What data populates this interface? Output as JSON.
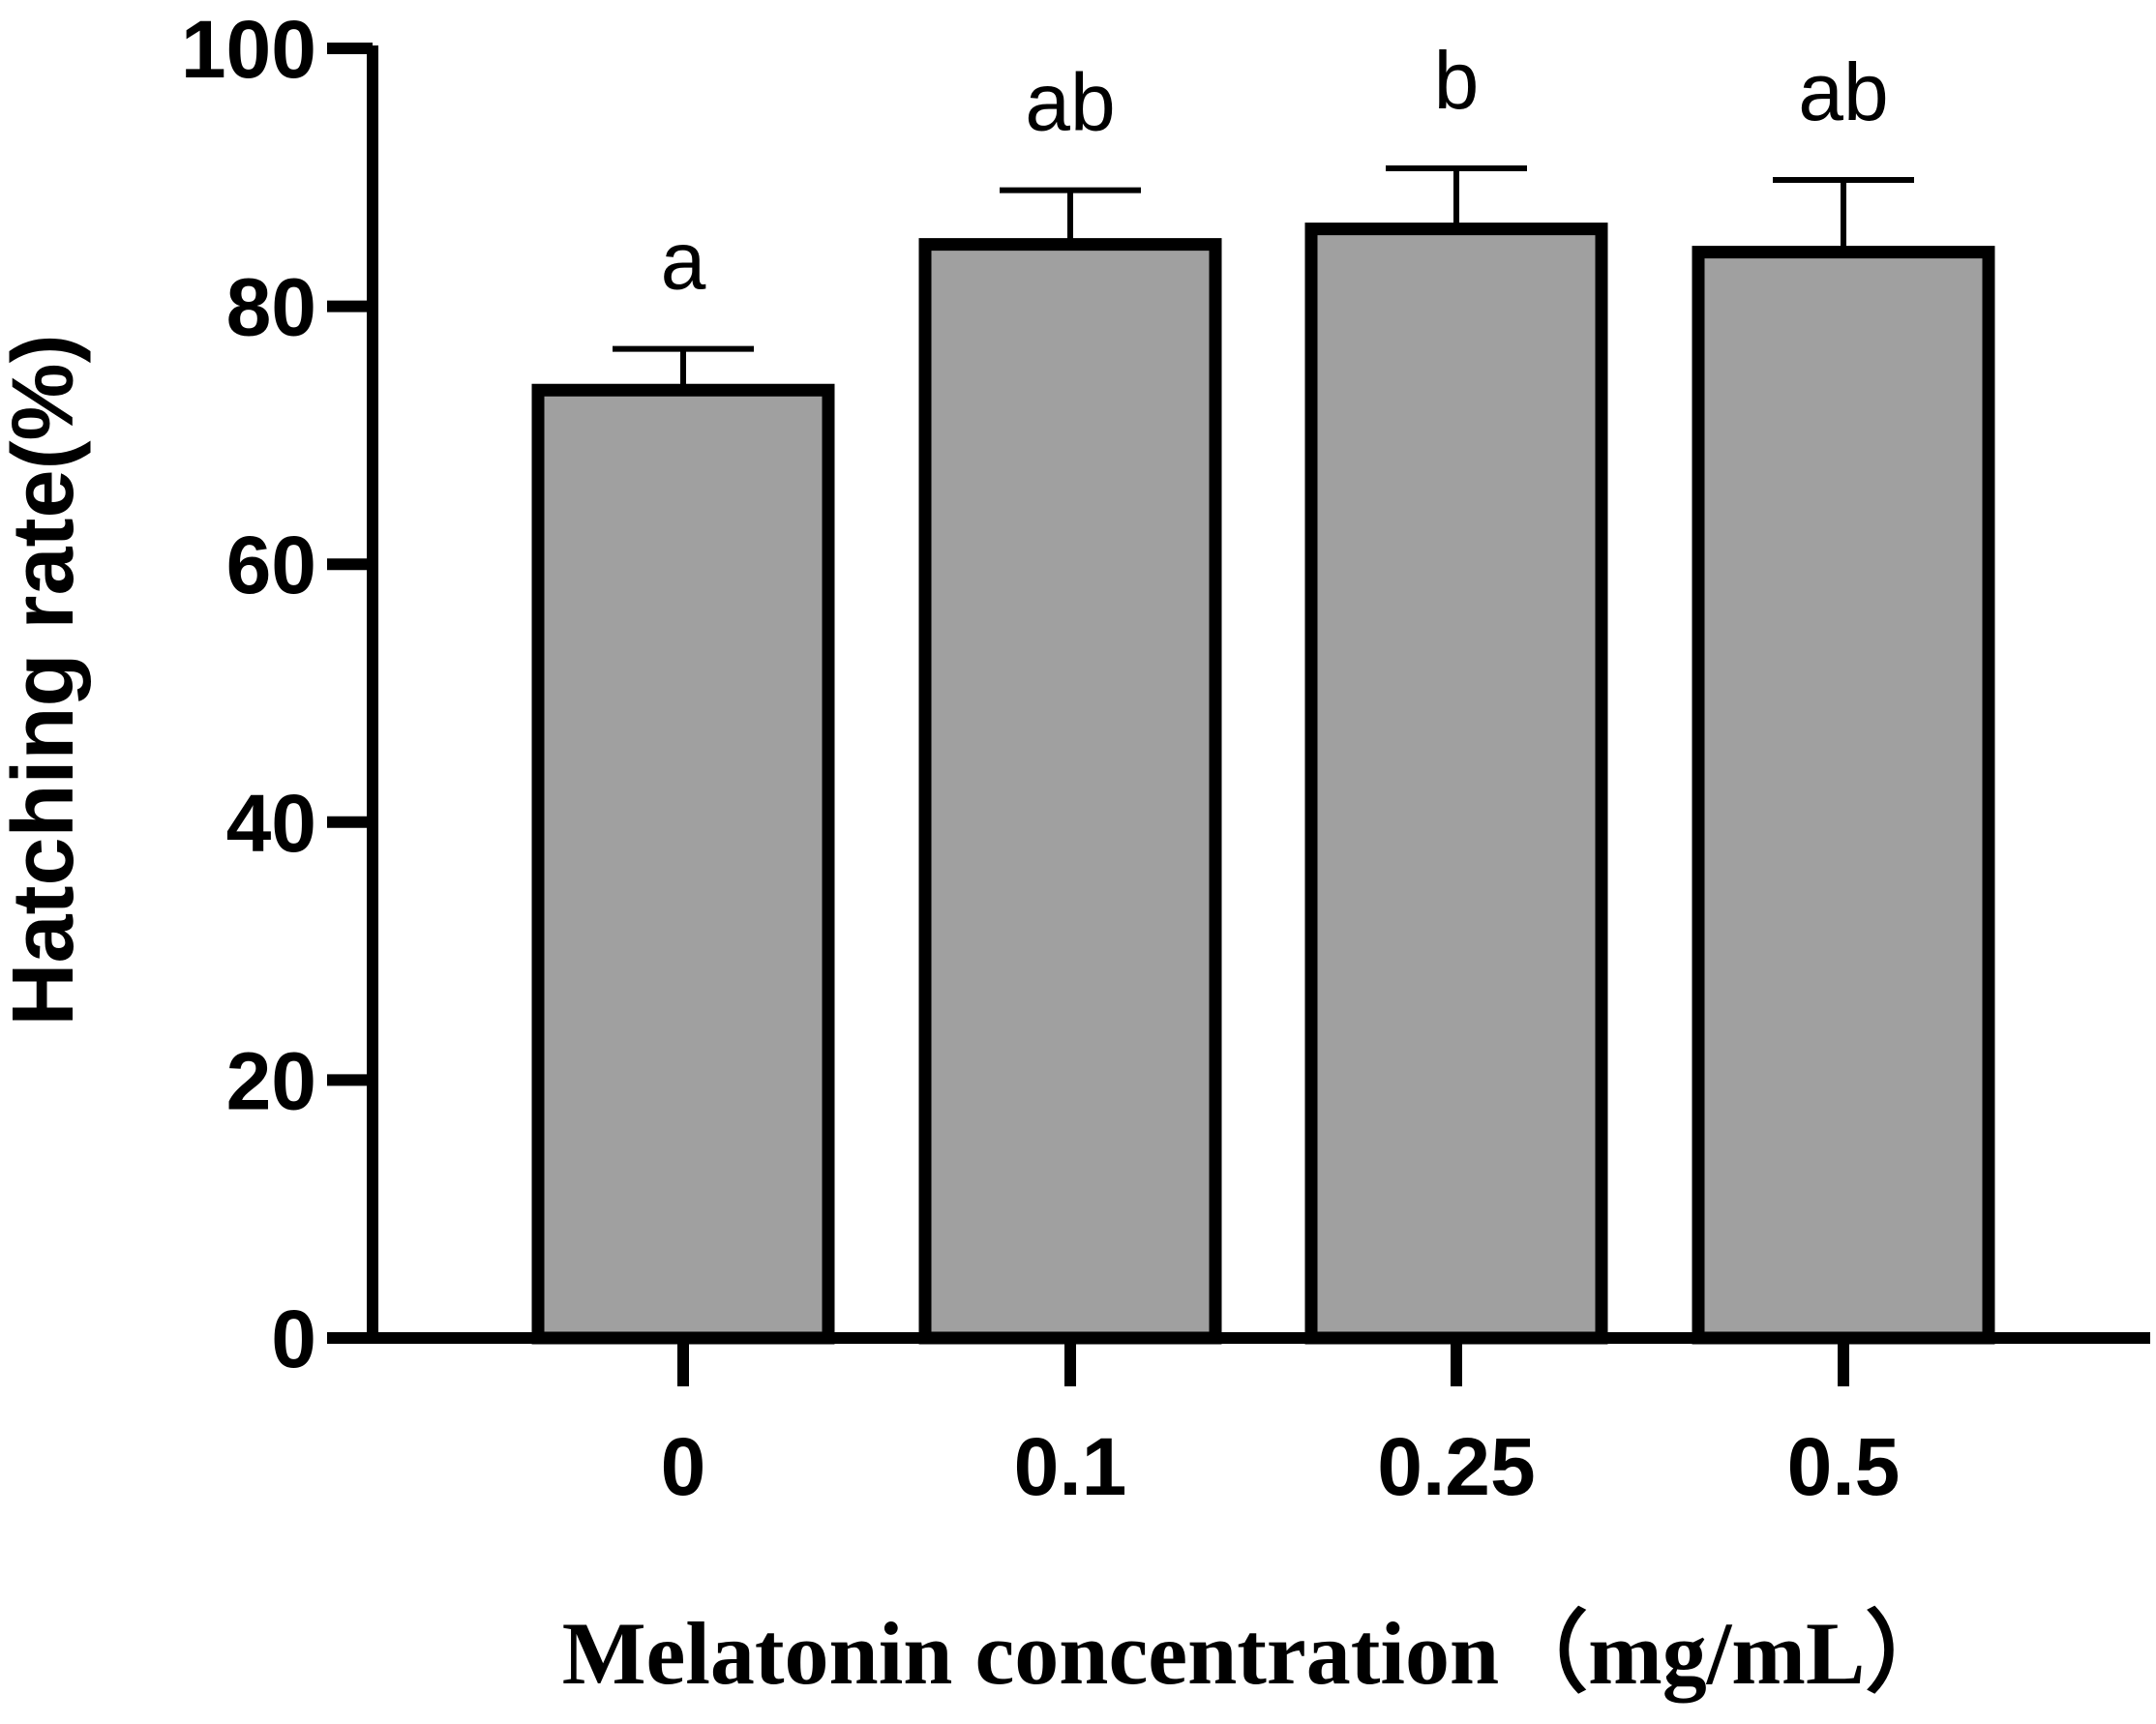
{
  "chart_data": {
    "type": "bar",
    "categories": [
      "0",
      "0.1",
      "0.25",
      "0.5"
    ],
    "values": [
      73.5,
      84.8,
      86.0,
      84.2
    ],
    "errors": [
      3.2,
      4.2,
      4.7,
      5.6
    ],
    "significance_letters": [
      "a",
      "ab",
      "b",
      "ab"
    ],
    "title": "",
    "xlabel": "Melatonin concentration（mg/mL）",
    "ylabel": "Hatching rate(%)",
    "ylim": [
      0,
      100
    ],
    "yticks": [
      "0",
      "20",
      "40",
      "60",
      "80",
      "100"
    ],
    "grid": false,
    "legend": "none",
    "colors": {
      "bar_fill": "#a0a0a0",
      "bar_stroke": "#000000",
      "axis": "#000000"
    }
  }
}
